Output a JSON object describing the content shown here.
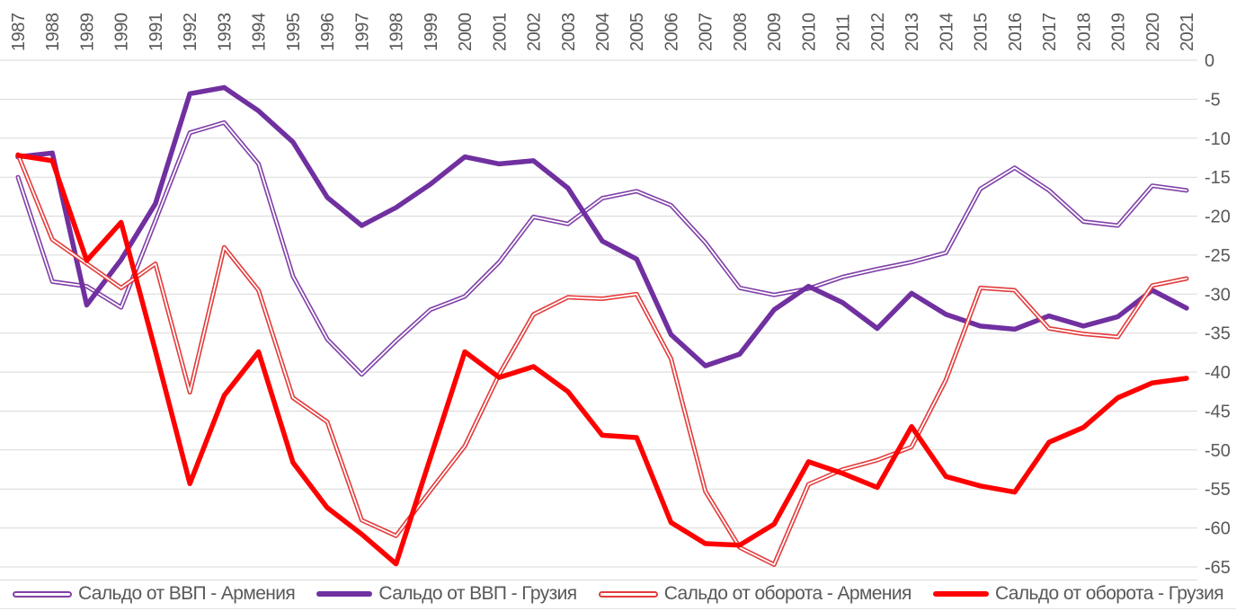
{
  "chart_data": {
    "type": "line",
    "title": "",
    "xlabel": "",
    "ylabel": "",
    "x_labels": [
      "1987",
      "1988",
      "1989",
      "1990",
      "1991",
      "1992",
      "1993",
      "1994",
      "1995",
      "1996",
      "1997",
      "1998",
      "1999",
      "2000",
      "2001",
      "2002",
      "2003",
      "2004",
      "2005",
      "2006",
      "2007",
      "2008",
      "2009",
      "2010",
      "2011",
      "2012",
      "2013",
      "2014",
      "2015",
      "2016",
      "2017",
      "2018",
      "2019",
      "2020",
      "2021"
    ],
    "ylim": [
      -65,
      0
    ],
    "yticks": [
      0,
      -5,
      -10,
      -15,
      -20,
      -25,
      -30,
      -35,
      -40,
      -45,
      -50,
      -55,
      -60,
      -65
    ],
    "grid": true,
    "legend_position": "bottom",
    "text_color": "#595959",
    "gridline_color": "#D9D9D9",
    "axisline_color": "#D9D9D9",
    "series": [
      {
        "name": "Сальдо от ВВП - Армения",
        "style": "outline",
        "color": "#8040A8",
        "width": 5,
        "values": [
          -15,
          -28.4,
          -29,
          -31.7,
          -20.6,
          -9.3,
          -8,
          -13.3,
          -27.7,
          -35.8,
          -40.3,
          -36,
          -32,
          -30.3,
          -25.9,
          -20.1,
          -21,
          -17.7,
          -16.8,
          -18.6,
          -23.4,
          -29.2,
          -30.1,
          -29.3,
          -27.8,
          -26.8,
          -25.9,
          -24.7,
          -16.5,
          -13.8,
          -16.7,
          -20.7,
          -21.2,
          -16.1,
          -16.7
        ]
      },
      {
        "name": "Сальдо от ВВП - Грузия",
        "style": "solid",
        "color": "#7030A0",
        "width": 5.5,
        "values": [
          -12.4,
          -11.9,
          -31.4,
          -25.6,
          -18.4,
          -4.3,
          -3.5,
          -6.5,
          -10.5,
          -17.6,
          -21.2,
          -18.9,
          -15.9,
          -12.4,
          -13.3,
          -12.9,
          -16.4,
          -23.2,
          -25.5,
          -35.2,
          -39.2,
          -37.7,
          -32,
          -29,
          -31.1,
          -34.4,
          -29.9,
          -32.6,
          -34.1,
          -34.5,
          -32.8,
          -34.1,
          -32.9,
          -29.5,
          -31.8
        ]
      },
      {
        "name": "Сальдо от оборота - Армения",
        "style": "outline",
        "color": "#E43B3B",
        "width": 5,
        "values": [
          -12.1,
          -23,
          -26.1,
          -29.2,
          -26.1,
          -42.6,
          -24,
          -29.5,
          -43.3,
          -46.4,
          -59,
          -61,
          -55.2,
          -49.5,
          -40.3,
          -32.6,
          -30.4,
          -30.6,
          -30,
          -38.3,
          -55.3,
          -62.5,
          -64.7,
          -54.4,
          -52.5,
          -51.3,
          -49.6,
          -41,
          -29.2,
          -29.5,
          -34.4,
          -35.1,
          -35.5,
          -28.9,
          -28
        ]
      },
      {
        "name": "Сальдо от оборота - Грузия",
        "style": "solid",
        "color": "#FF0000",
        "width": 5.5,
        "values": [
          -12.2,
          -12.9,
          -25.7,
          -20.8,
          -37.3,
          -54.3,
          -43,
          -37.4,
          -51.6,
          -57.4,
          -60.8,
          -64.6,
          -51,
          -37.4,
          -40.7,
          -39.3,
          -42.5,
          -48.1,
          -48.4,
          -59.3,
          -62,
          -62.2,
          -59.5,
          -51.5,
          -53,
          -54.8,
          -47,
          -53.4,
          -54.6,
          -55.4,
          -49,
          -47.1,
          -43.3,
          -41.4,
          -40.8
        ]
      }
    ]
  }
}
